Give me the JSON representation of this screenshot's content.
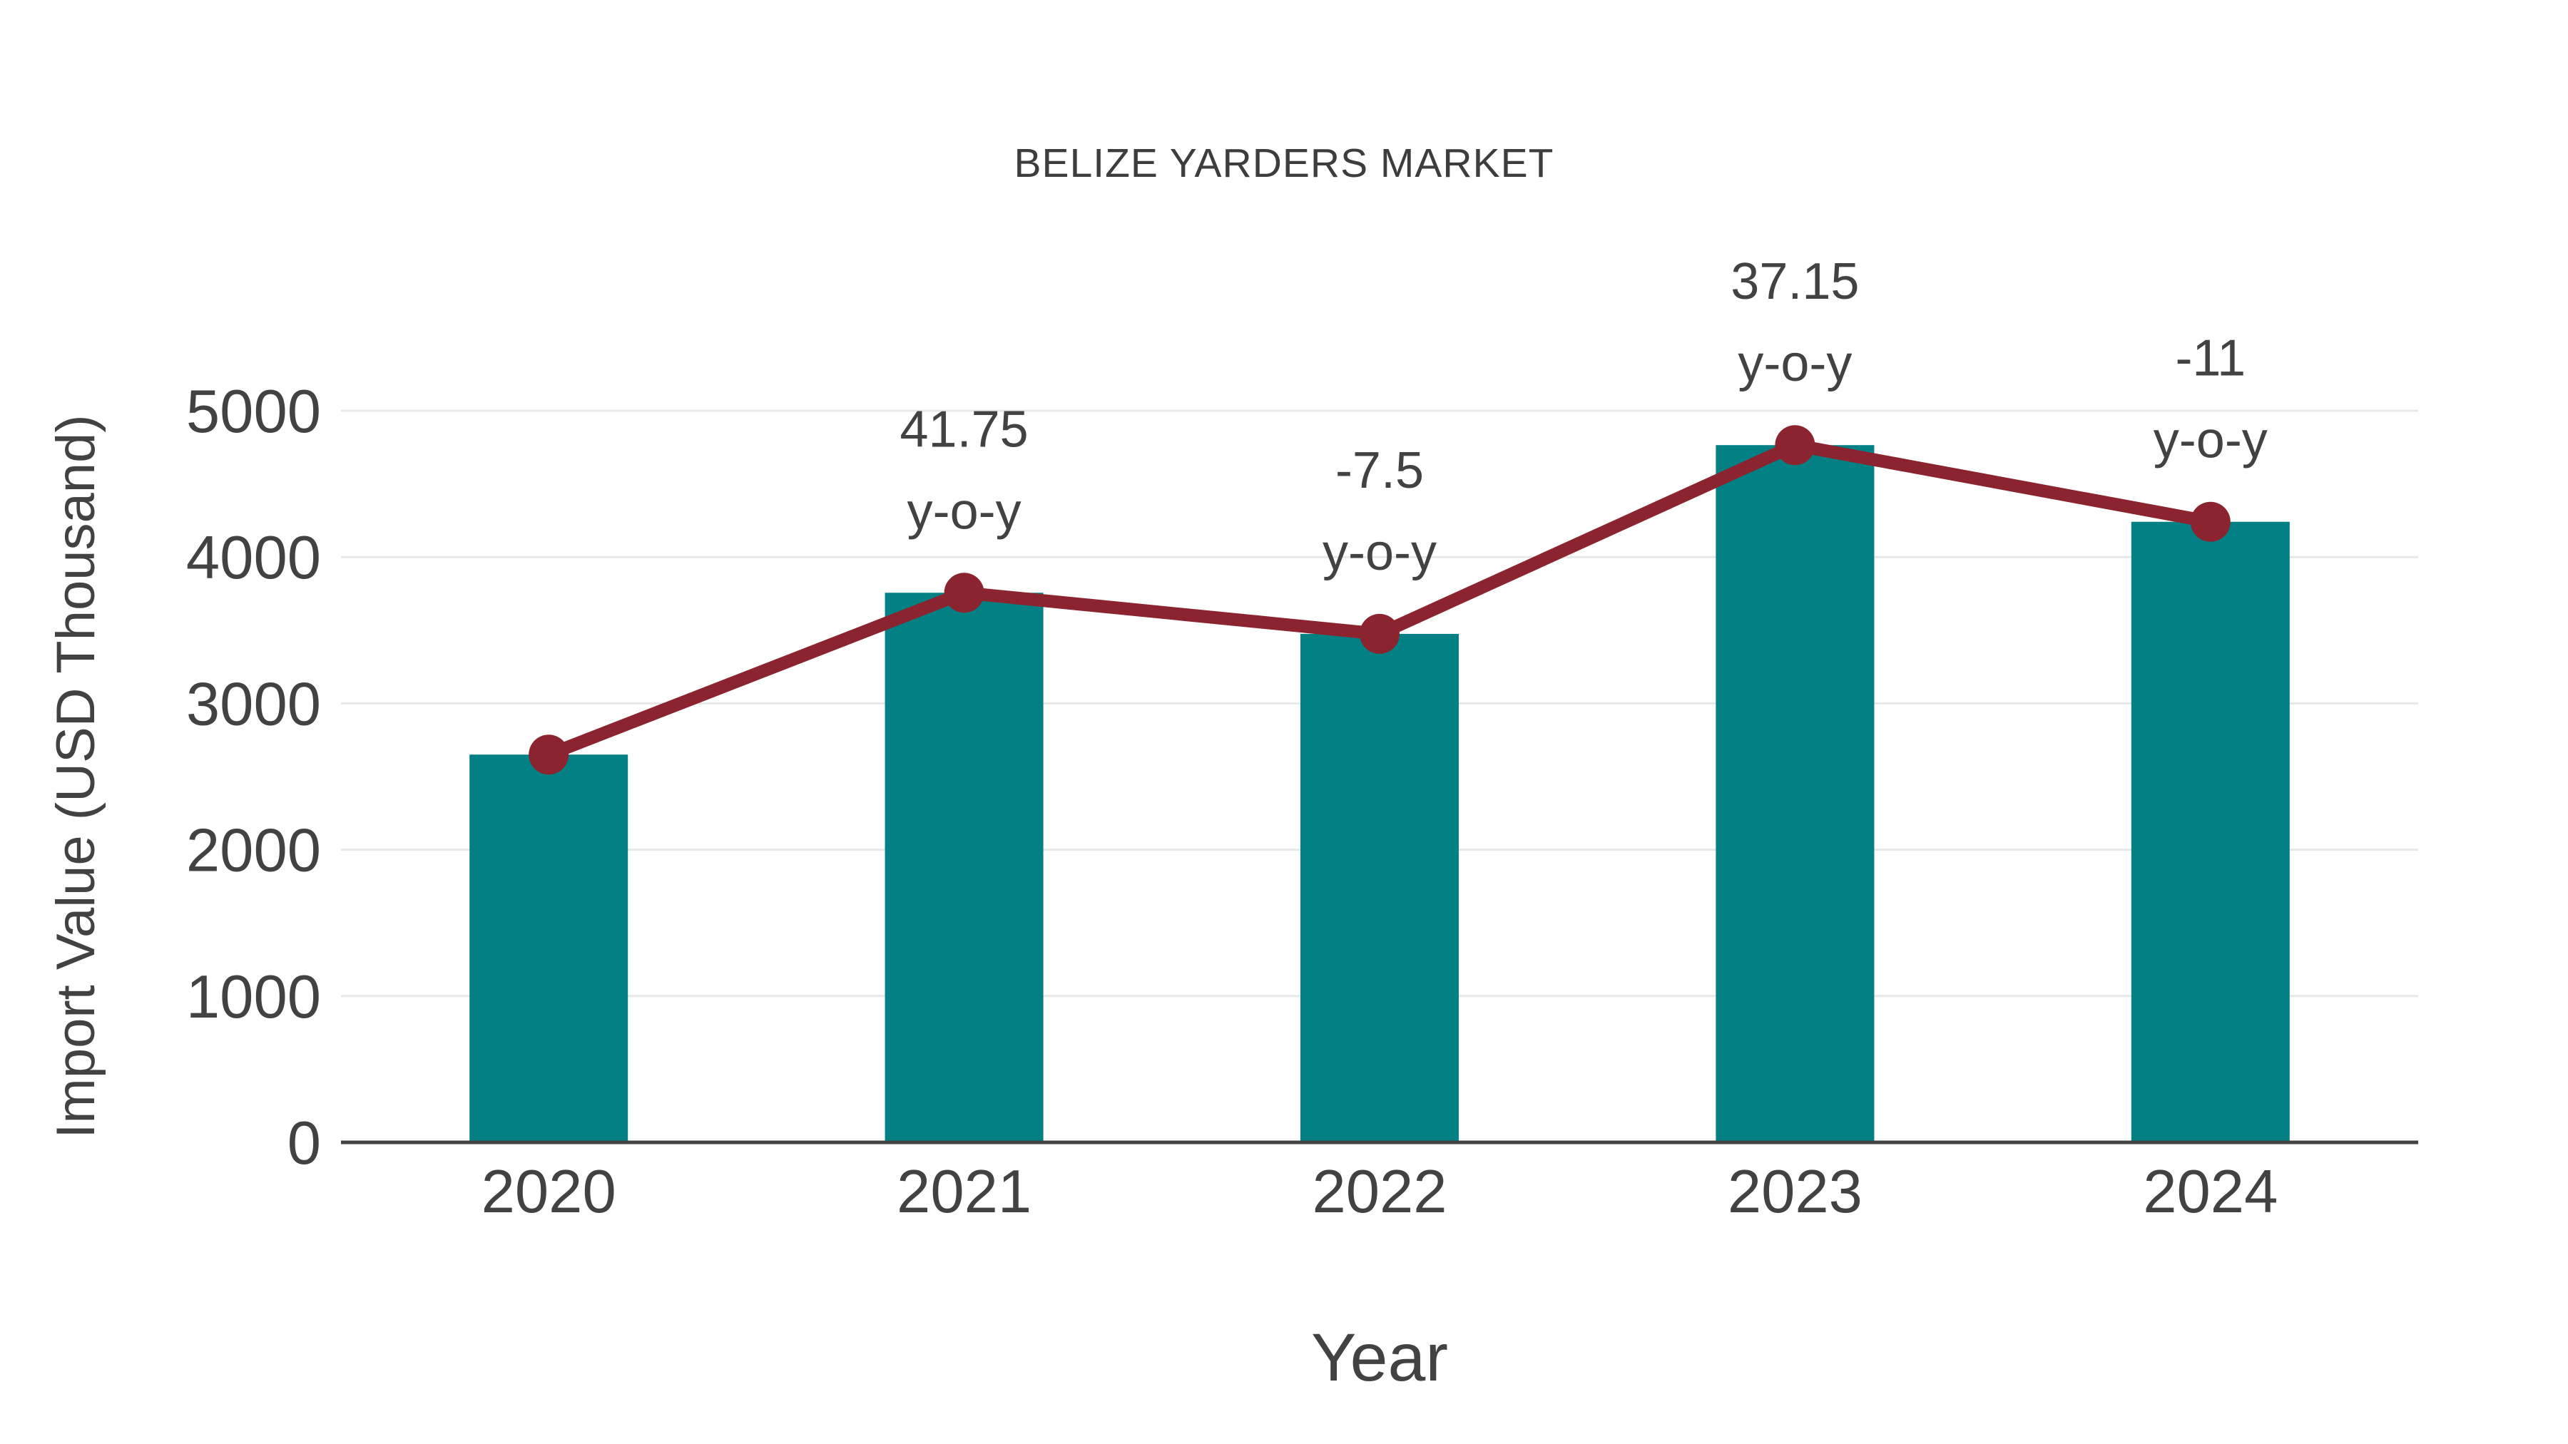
{
  "chart_data": {
    "type": "bar",
    "title": "BELIZE YARDERS MARKET",
    "categories": [
      "2020",
      "2021",
      "2022",
      "2023",
      "2024"
    ],
    "series": [
      {
        "name": "Import Value (USD Thousand) bars",
        "type": "bar",
        "values": [
          2650,
          3756,
          3475,
          4765,
          4241
        ]
      },
      {
        "name": "Import Value trend line",
        "type": "line",
        "values": [
          2650,
          3756,
          3475,
          4765,
          4241
        ]
      }
    ],
    "annotations": [
      {
        "category": "2021",
        "lines": [
          "41.75",
          "y-o-y"
        ]
      },
      {
        "category": "2022",
        "lines": [
          "-7.5",
          "y-o-y"
        ]
      },
      {
        "category": "2023",
        "lines": [
          "37.15",
          "y-o-y"
        ]
      },
      {
        "category": "2024",
        "lines": [
          "-11",
          "y-o-y"
        ]
      }
    ],
    "xlabel": "Year",
    "ylabel": "Import Value (USD Thousand)",
    "ylim": [
      0,
      5000
    ],
    "yticks": [
      0,
      1000,
      2000,
      3000,
      4000,
      5000
    ],
    "grid": "horizontal",
    "legend": "none",
    "colors": {
      "bar": "#028083",
      "line": "#8b242e",
      "grid": "#e8e8e8",
      "axis": "#424242",
      "text": "#424242",
      "title": "#3d3d3d",
      "background": "#ffffff"
    }
  }
}
